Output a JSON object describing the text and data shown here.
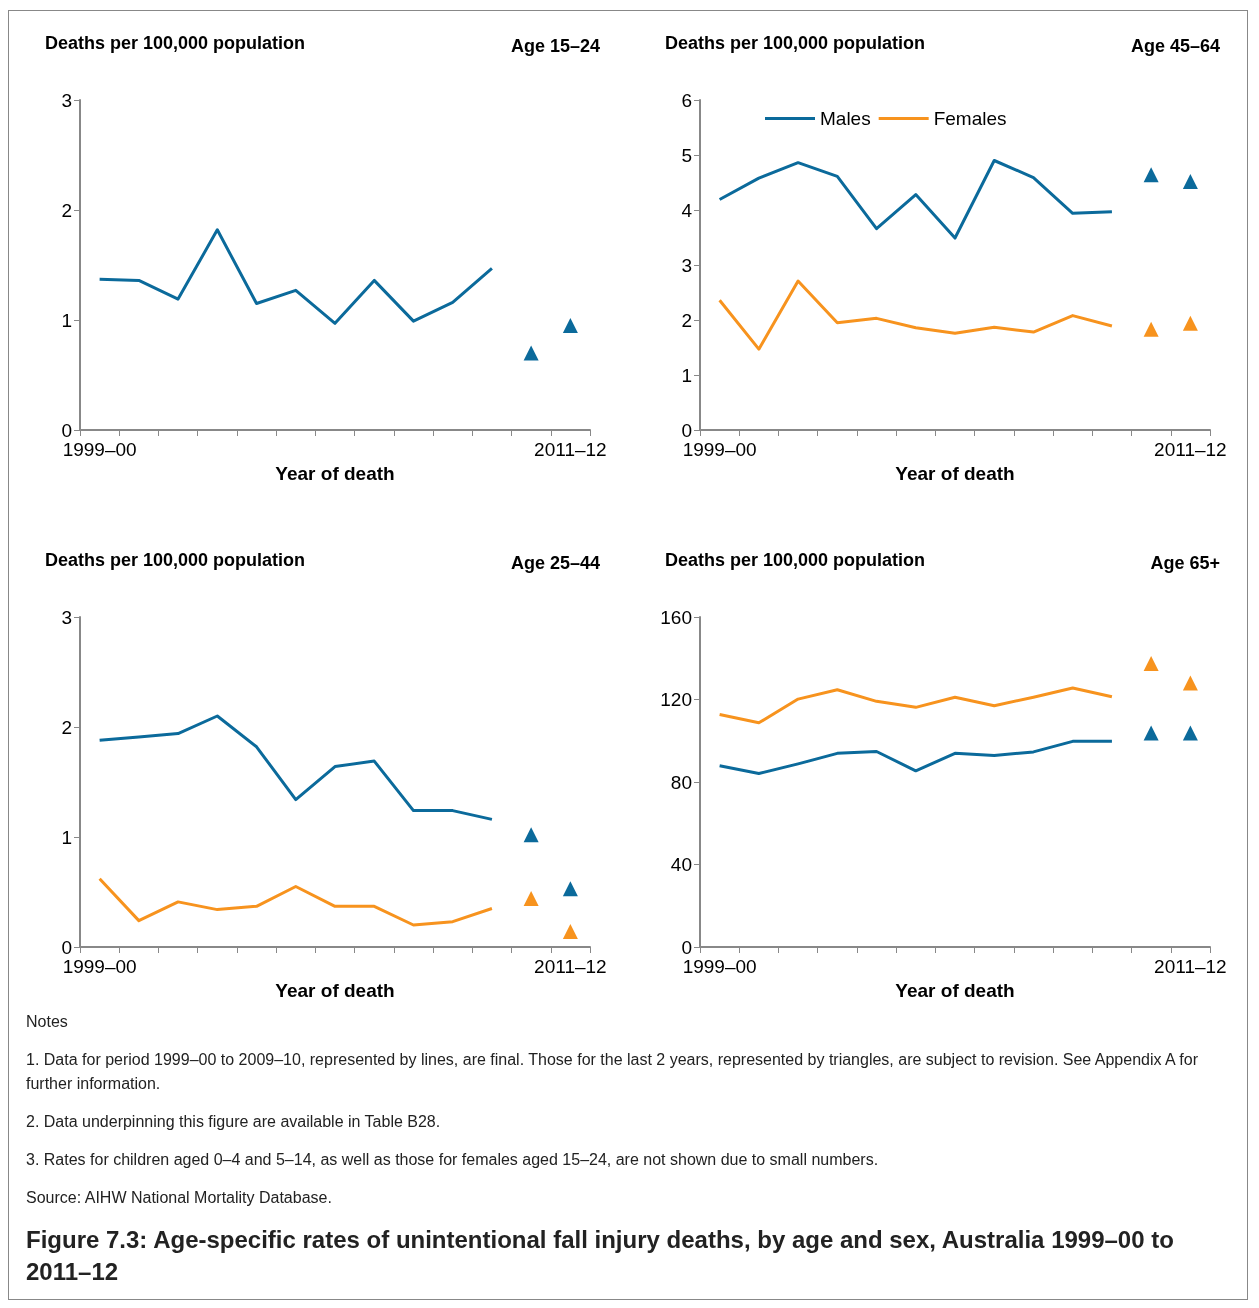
{
  "chart_data": [
    {
      "type": "line",
      "title": "Age 15–24",
      "ylabel": "Deaths per 100,000 population",
      "xlabel": "Year of death",
      "categories": [
        "1999–00",
        null,
        null,
        null,
        null,
        null,
        null,
        null,
        null,
        null,
        null,
        null,
        "2011–12"
      ],
      "series": [
        {
          "type": "line",
          "marker": "none",
          "color": "#0b6a9b",
          "values": [
            1.37,
            1.36,
            1.19,
            1.82,
            1.15,
            1.27,
            0.97,
            1.36,
            0.99,
            1.16,
            1.47,
            null,
            null
          ]
        },
        {
          "type": "scatter",
          "marker": "triangle",
          "color": "#0b6a9b",
          "values": [
            null,
            null,
            null,
            null,
            null,
            null,
            null,
            null,
            null,
            null,
            null,
            0.7,
            0.95
          ]
        }
      ],
      "ylim": [
        0,
        3
      ],
      "yticks": [
        0,
        1,
        2,
        3
      ],
      "grid": false,
      "legend": false
    },
    {
      "type": "line",
      "title": "Age 45–64",
      "ylabel": "Deaths per 100,000 population",
      "xlabel": "Year of death",
      "categories": [
        "1999–00",
        null,
        null,
        null,
        null,
        null,
        null,
        null,
        null,
        null,
        null,
        null,
        "2011–12"
      ],
      "series": [
        {
          "type": "line",
          "marker": "none",
          "name": "Males",
          "color": "#0b6a9b",
          "values": [
            4.19,
            4.58,
            4.86,
            4.61,
            3.66,
            4.28,
            3.49,
            4.9,
            4.59,
            3.94,
            3.97,
            null,
            null
          ]
        },
        {
          "type": "line",
          "marker": "none",
          "name": "Females",
          "color": "#f7931e",
          "values": [
            2.36,
            1.47,
            2.71,
            1.95,
            2.03,
            1.86,
            1.76,
            1.87,
            1.78,
            2.08,
            1.89,
            null,
            null
          ]
        },
        {
          "type": "scatter",
          "marker": "triangle",
          "color": "#0b6a9b",
          "values": [
            null,
            null,
            null,
            null,
            null,
            null,
            null,
            null,
            null,
            null,
            null,
            4.64,
            4.52
          ]
        },
        {
          "type": "scatter",
          "marker": "triangle",
          "color": "#f7931e",
          "values": [
            null,
            null,
            null,
            null,
            null,
            null,
            null,
            null,
            null,
            null,
            null,
            1.83,
            1.94
          ]
        }
      ],
      "ylim": [
        0,
        6
      ],
      "yticks": [
        0,
        1,
        2,
        3,
        4,
        5,
        6
      ],
      "grid": false,
      "legend": "top left"
    },
    {
      "type": "line",
      "title": "Age 25–44",
      "ylabel": "Deaths per 100,000 population",
      "xlabel": "Year of death",
      "categories": [
        "1999–00",
        null,
        null,
        null,
        null,
        null,
        null,
        null,
        null,
        null,
        null,
        null,
        "2011–12"
      ],
      "series": [
        {
          "type": "line",
          "marker": "none",
          "color": "#0b6a9b",
          "values": [
            1.88,
            1.91,
            1.94,
            2.1,
            1.82,
            1.34,
            1.64,
            1.69,
            1.24,
            1.24,
            1.16,
            null,
            null
          ]
        },
        {
          "type": "line",
          "marker": "none",
          "color": "#f7931e",
          "values": [
            0.62,
            0.24,
            0.41,
            0.34,
            0.37,
            0.55,
            0.37,
            0.37,
            0.2,
            0.23,
            0.35,
            null,
            null
          ]
        },
        {
          "type": "scatter",
          "marker": "triangle",
          "color": "#0b6a9b",
          "values": [
            null,
            null,
            null,
            null,
            null,
            null,
            null,
            null,
            null,
            null,
            null,
            1.02,
            0.53
          ]
        },
        {
          "type": "scatter",
          "marker": "triangle",
          "color": "#f7931e",
          "values": [
            null,
            null,
            null,
            null,
            null,
            null,
            null,
            null,
            null,
            null,
            null,
            0.44,
            0.14
          ]
        }
      ],
      "ylim": [
        0,
        3
      ],
      "yticks": [
        0,
        1,
        2,
        3
      ],
      "grid": false,
      "legend": false
    },
    {
      "type": "line",
      "title": "Age 65+",
      "ylabel": "Deaths per 100,000 population",
      "xlabel": "Year of death",
      "categories": [
        "1999–00",
        null,
        null,
        null,
        null,
        null,
        null,
        null,
        null,
        null,
        null,
        null,
        "2011–12"
      ],
      "series": [
        {
          "type": "line",
          "marker": "none",
          "color": "#0b6a9b",
          "values": [
            87.9,
            84.1,
            88.8,
            93.9,
            94.8,
            85.4,
            93.9,
            92.8,
            94.6,
            99.7,
            99.7,
            null,
            null
          ]
        },
        {
          "type": "line",
          "marker": "none",
          "color": "#f7931e",
          "values": [
            112.7,
            108.7,
            120.2,
            124.7,
            119.1,
            116.2,
            121.1,
            117.0,
            121.1,
            125.6,
            121.3,
            null,
            null
          ]
        },
        {
          "type": "scatter",
          "marker": "triangle",
          "color": "#0b6a9b",
          "values": [
            null,
            null,
            null,
            null,
            null,
            null,
            null,
            null,
            null,
            null,
            null,
            103.7,
            103.7
          ]
        },
        {
          "type": "scatter",
          "marker": "triangle",
          "color": "#f7931e",
          "values": [
            null,
            null,
            null,
            null,
            null,
            null,
            null,
            null,
            null,
            null,
            null,
            137.5,
            128
          ]
        }
      ],
      "ylim": [
        0,
        160
      ],
      "yticks": [
        0,
        40,
        80,
        120,
        160
      ],
      "grid": false,
      "legend": false
    },
    {
      "type": "other",
      "title": "Figure 7.3: Age-specific rates of unintentional fall injury deaths, by age and sex, Australia 1999–00 to 2011–12",
      "annotations": [
        "Notes",
        "1. Data for period 1999–00 to 2009–10, represented by lines, are final. Those for the last 2 years, represented by triangles, are subject to revision. See Appendix A for further information.",
        "2. Data underpinning this figure are available in Table B28.",
        "3. Rates for children aged 0–4 and 5–14, as well as those for females aged 15–24, are not shown due to small numbers.",
        "Source: AIHW National Mortality Database."
      ]
    }
  ]
}
